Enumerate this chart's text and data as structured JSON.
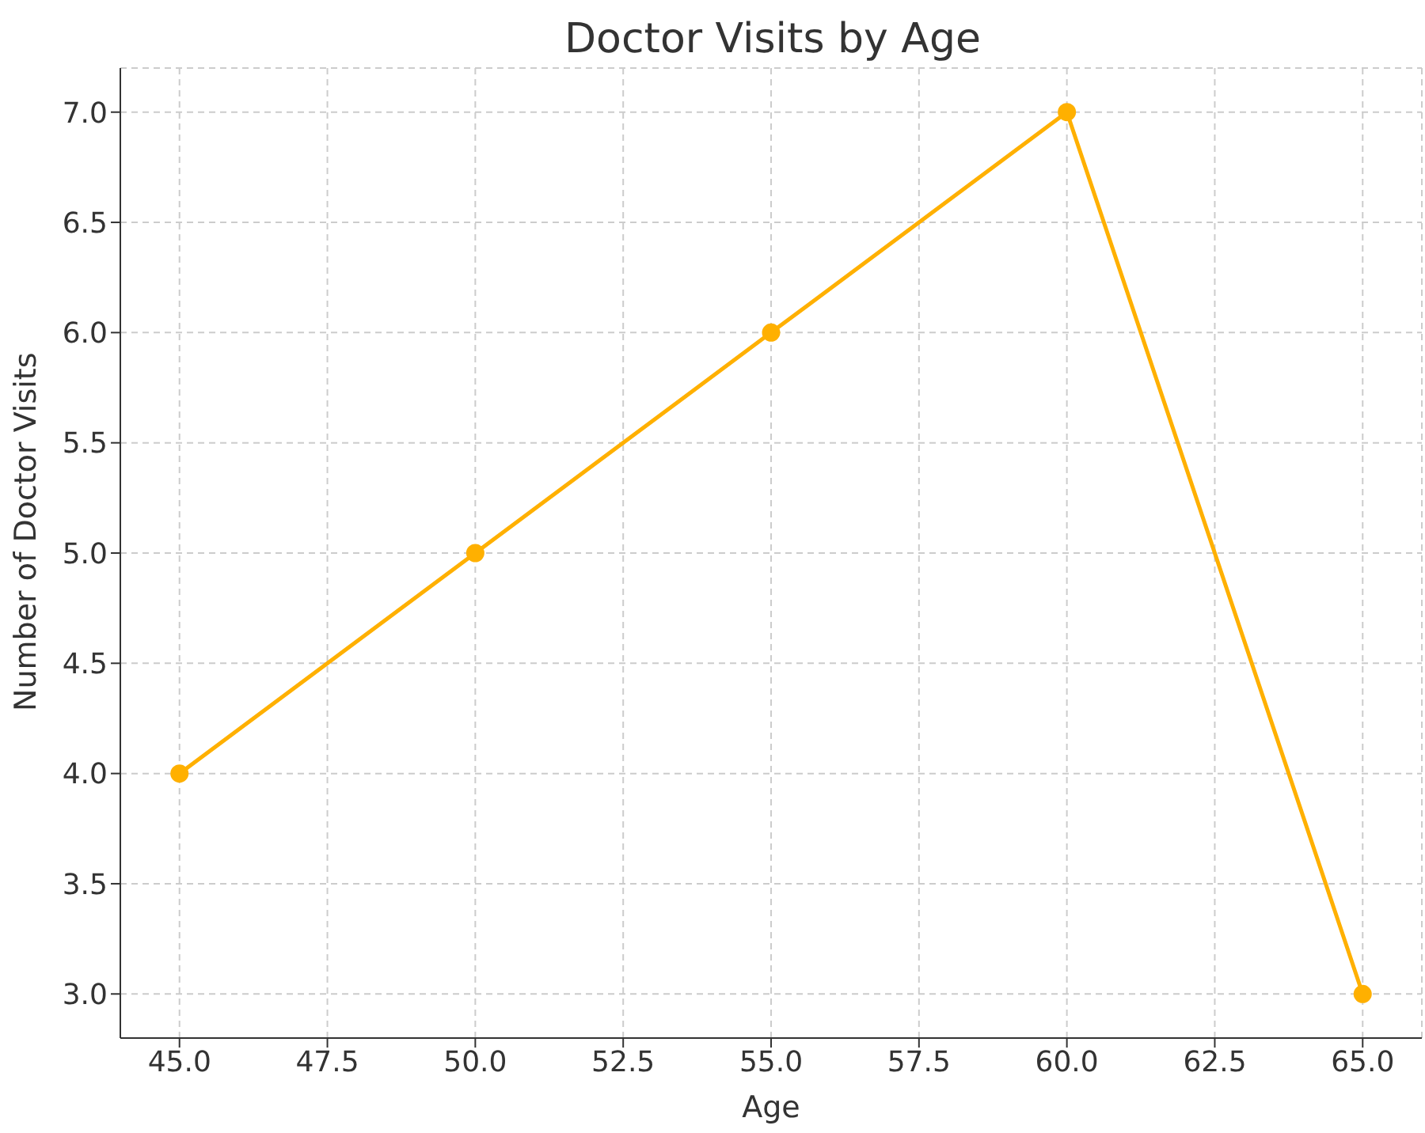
{
  "chart_data": {
    "type": "line",
    "title": "Doctor Visits by Age",
    "xlabel": "Age",
    "ylabel": "Number of Doctor Visits",
    "x": [
      45,
      50,
      55,
      60,
      65
    ],
    "series": [
      {
        "color": "#ffb000",
        "values": [
          4,
          5,
          6,
          7,
          3
        ]
      }
    ],
    "xlim": [
      44,
      66
    ],
    "xticks": [
      {
        "value": 45,
        "label": "45.0"
      },
      {
        "value": 47.5,
        "label": "47.5"
      },
      {
        "value": 50,
        "label": "50.0"
      },
      {
        "value": 52.5,
        "label": "52.5"
      },
      {
        "value": 55,
        "label": "55.0"
      },
      {
        "value": 57.5,
        "label": "57.5"
      },
      {
        "value": 60,
        "label": "60.0"
      },
      {
        "value": 62.5,
        "label": "62.5"
      },
      {
        "value": 65,
        "label": "65.0"
      }
    ],
    "ylim": [
      2.8,
      7.2
    ],
    "yticks": [
      {
        "value": 3,
        "label": "3.0"
      },
      {
        "value": 3.5,
        "label": "3.5"
      },
      {
        "value": 4,
        "label": "4.0"
      },
      {
        "value": 4.5,
        "label": "4.5"
      },
      {
        "value": 5,
        "label": "5.0"
      },
      {
        "value": 5.5,
        "label": "5.5"
      },
      {
        "value": 6,
        "label": "6.0"
      },
      {
        "value": 6.5,
        "label": "6.5"
      },
      {
        "value": 7,
        "label": "7.0"
      }
    ],
    "grid": true,
    "marker": "circle",
    "line_style": "solid",
    "legend": false
  }
}
